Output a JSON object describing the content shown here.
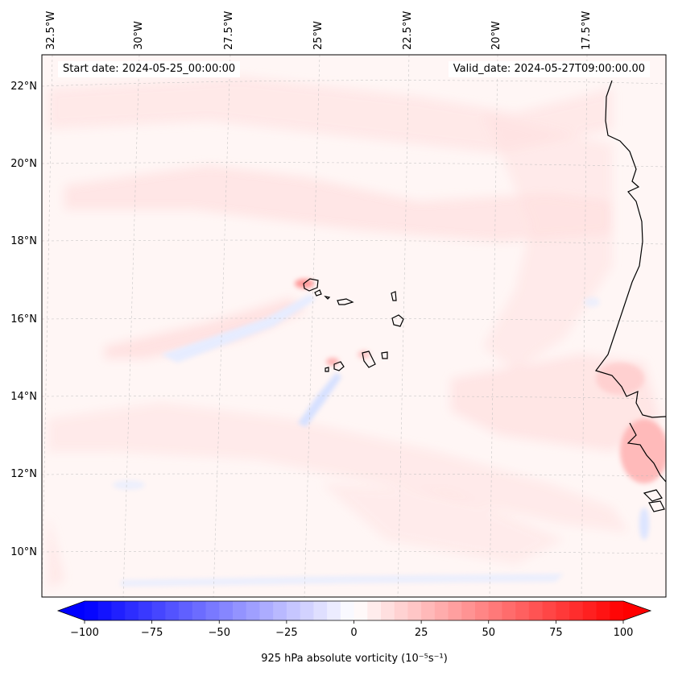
{
  "header": {
    "start_date": "Start date: 2024-05-25_00:00:00",
    "valid_date": "Valid_date: 2024-05-27T09:00:00.00"
  },
  "longitude_labels": [
    "32.5°W",
    "30°W",
    "27.5°W",
    "25°W",
    "22.5°W",
    "20°W",
    "17.5°W"
  ],
  "latitude_labels": [
    "22°N",
    "20°N",
    "18°N",
    "16°N",
    "14°N",
    "12°N",
    "10°N"
  ],
  "colorbar": {
    "tick_labels": [
      "−100",
      "−75",
      "−50",
      "−25",
      "0",
      "25",
      "50",
      "75",
      "100"
    ],
    "label": "925 hPa absolute vorticity (10⁻⁵s⁻¹)",
    "min": -100,
    "max": 100,
    "colormap": "bwr",
    "negative_color": "#0000ff",
    "positive_color": "#ff0000",
    "neutral_color": "#ffffff"
  }
}
